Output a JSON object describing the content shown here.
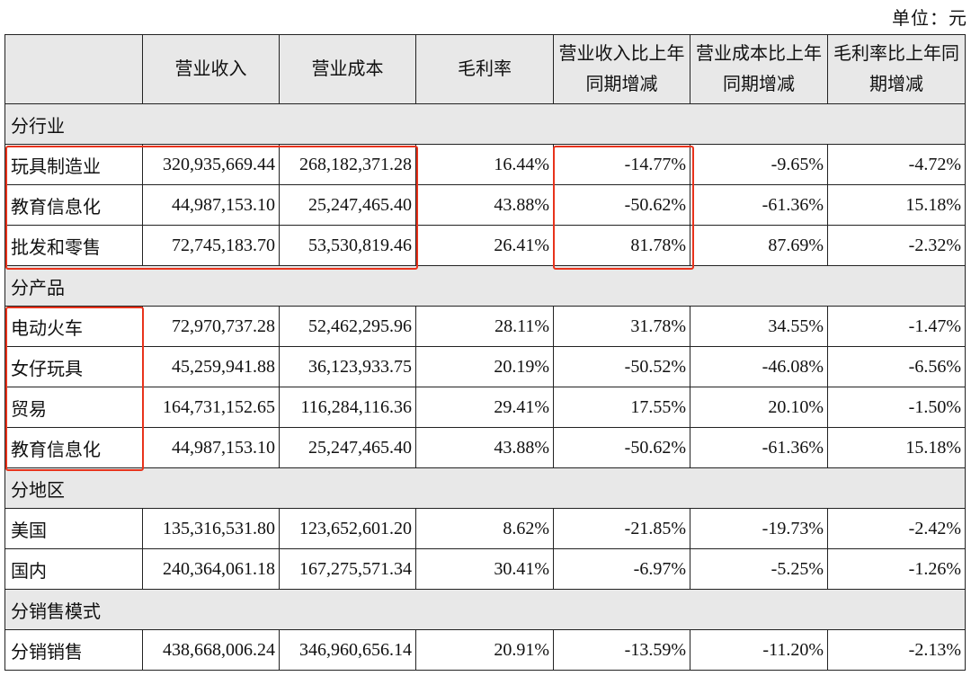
{
  "unit_label": "单位：元",
  "headers": [
    "",
    "营业收入",
    "营业成本",
    "毛利率",
    "营业收入比上年同期增减",
    "营业成本比上年同期增减",
    "毛利率比上年同期增减"
  ],
  "header_lines": [
    [
      ""
    ],
    [
      "营业收入"
    ],
    [
      "营业成本"
    ],
    [
      "毛利率"
    ],
    [
      "营业收入比上年",
      "同期增减"
    ],
    [
      "营业成本比上年",
      "同期增减"
    ],
    [
      "毛利率比上年同",
      "期增减"
    ]
  ],
  "sections": [
    {
      "title": "分行业",
      "rows": [
        [
          "玩具制造业",
          "320,935,669.44",
          "268,182,371.28",
          "16.44%",
          "-14.77%",
          "-9.65%",
          "-4.72%"
        ],
        [
          "教育信息化",
          "44,987,153.10",
          "25,247,465.40",
          "43.88%",
          "-50.62%",
          "-61.36%",
          "15.18%"
        ],
        [
          "批发和零售",
          "72,745,183.70",
          "53,530,819.46",
          "26.41%",
          "81.78%",
          "87.69%",
          "-2.32%"
        ]
      ]
    },
    {
      "title": "分产品",
      "rows": [
        [
          "电动火车",
          "72,970,737.28",
          "52,462,295.96",
          "28.11%",
          "31.78%",
          "34.55%",
          "-1.47%"
        ],
        [
          "女仔玩具",
          "45,259,941.88",
          "36,123,933.75",
          "20.19%",
          "-50.52%",
          "-46.08%",
          "-6.56%"
        ],
        [
          "贸易",
          "164,731,152.65",
          "116,284,116.36",
          "29.41%",
          "17.55%",
          "20.10%",
          "-1.50%"
        ],
        [
          "教育信息化",
          "44,987,153.10",
          "25,247,465.40",
          "43.88%",
          "-50.62%",
          "-61.36%",
          "15.18%"
        ]
      ]
    },
    {
      "title": "分地区",
      "rows": [
        [
          "美国",
          "135,316,531.80",
          "123,652,601.20",
          "8.62%",
          "-21.85%",
          "-19.73%",
          "-2.42%"
        ],
        [
          "国内",
          "240,364,061.18",
          "167,275,571.34",
          "30.41%",
          "-6.97%",
          "-5.25%",
          "-1.26%"
        ]
      ]
    },
    {
      "title": "分销售模式",
      "rows": [
        [
          "分销销售",
          "438,668,006.24",
          "346,960,656.14",
          "20.91%",
          "-13.59%",
          "-11.20%",
          "-2.13%"
        ]
      ]
    }
  ],
  "highlight_color": "#e8331c"
}
